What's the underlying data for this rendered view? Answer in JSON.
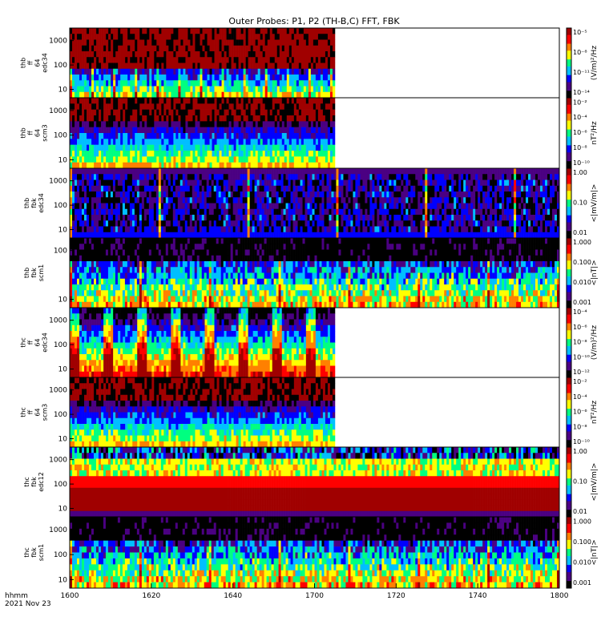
{
  "chart_data": {
    "type": "heatmap",
    "title": "Outer Probes: P1, P2 (TH-B,C) FFT, FBK",
    "time_axis": {
      "ticks": [
        "1600",
        "1620",
        "1640",
        "1700",
        "1720",
        "1740",
        "1800"
      ],
      "label_line1": "hhmm",
      "label_line2": "2021 Nov 23"
    },
    "panels": [
      {
        "ylabel": [
          "thb",
          "ff",
          "64",
          "edc34"
        ],
        "yticks": [
          "1000",
          "100",
          "10"
        ],
        "cbar_label": "(V/m)²/Hz",
        "cbar_ticks": [
          "10⁻⁵",
          "10⁻⁸",
          "10⁻¹¹",
          "10⁻¹⁴"
        ],
        "data_end": "1705",
        "style": "efield-fft"
      },
      {
        "ylabel": [
          "thb",
          "ff",
          "64",
          "scm3"
        ],
        "yticks": [
          "1000",
          "100",
          "10"
        ],
        "cbar_label": "nT²/Hz",
        "cbar_ticks": [
          "10⁻²",
          "10⁻⁴",
          "10⁻⁶",
          "10⁻⁸",
          "10⁻¹⁰"
        ],
        "data_end": "1705",
        "style": "scm-fft"
      },
      {
        "ylabel": [
          "thb",
          "fbk",
          "edc34"
        ],
        "yticks": [
          "1000",
          "100",
          "10"
        ],
        "cbar_label": "<|mV/m|>",
        "cbar_ticks": [
          "1.00",
          "0.10",
          "0.01"
        ],
        "data_end": "1800",
        "style": "efield-fbk"
      },
      {
        "ylabel": [
          "thb",
          "fbk",
          "scm1"
        ],
        "yticks": [
          "100",
          "10"
        ],
        "cbar_label": "<|nT|>",
        "cbar_ticks": [
          "1.000",
          "0.100",
          "0.010",
          "0.001"
        ],
        "data_end": "1800",
        "style": "scm-fbk"
      },
      {
        "ylabel": [
          "thc",
          "ff",
          "64",
          "edc34"
        ],
        "yticks": [
          "1000",
          "100",
          "10"
        ],
        "cbar_label": "(V/m)²/Hz",
        "cbar_ticks": [
          "10⁻⁴",
          "10⁻⁶",
          "10⁻⁸",
          "10⁻¹⁰",
          "10⁻¹²"
        ],
        "data_end": "1705",
        "style": "efield-fft-c"
      },
      {
        "ylabel": [
          "thc",
          "ff",
          "64",
          "scm3"
        ],
        "yticks": [
          "1000",
          "100",
          "10"
        ],
        "cbar_label": "nT²/Hz",
        "cbar_ticks": [
          "10⁻²",
          "10⁻⁴",
          "10⁻⁶",
          "10⁻⁸",
          "10⁻¹⁰"
        ],
        "data_end": "1705",
        "style": "scm-fft"
      },
      {
        "ylabel": [
          "thc",
          "fbk",
          "edc12"
        ],
        "yticks": [
          "1000",
          "100",
          "10"
        ],
        "cbar_label": "<|mV/m|>",
        "cbar_ticks": [
          "1.00",
          "0.10",
          "0.01"
        ],
        "data_end": "1800",
        "style": "efield-fbk-c"
      },
      {
        "ylabel": [
          "thc",
          "fbk",
          "scm1"
        ],
        "yticks": [
          "1000",
          "100",
          "10"
        ],
        "cbar_label": "<|nT|>",
        "cbar_ticks": [
          "1.000",
          "0.100",
          "0.010",
          "0.001"
        ],
        "data_end": "1800",
        "style": "scm-fbk"
      }
    ],
    "colors": [
      "#000000",
      "#4b0082",
      "#0000ff",
      "#00bfff",
      "#00ff80",
      "#ffff00",
      "#ff8000",
      "#ff0000",
      "#a00000"
    ]
  }
}
